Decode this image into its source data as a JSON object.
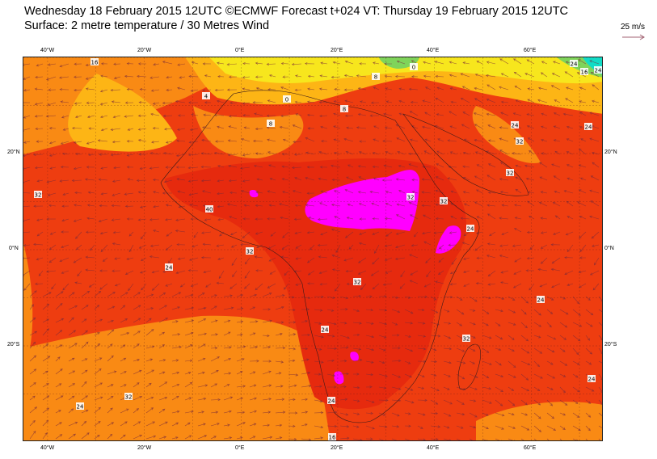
{
  "header": {
    "line1": "Wednesday 18 February 2015 12UTC ©ECMWF Forecast t+024 VT: Thursday 19 February 2015 12UTC",
    "line2": "Surface: 2 metre temperature / 30 Metres Wind",
    "wind_scale": "25 m/s"
  },
  "map": {
    "lon_range": [
      -45,
      75
    ],
    "lat_range": [
      -40,
      40
    ],
    "lon_ticks_top": [
      "40°W",
      "20°W",
      "0°E",
      "20°E",
      "40°E",
      "60°E"
    ],
    "lon_ticks_bottom": [
      "40°W",
      "20°W",
      "0°E",
      "20°E",
      "40°E",
      "60°E"
    ],
    "lat_ticks_left": [
      "20°N",
      "0°N",
      "20°S"
    ],
    "lat_ticks_right": [
      "20°N",
      "0°N",
      "20°S"
    ],
    "contour_labels": [
      "16",
      "4",
      "8",
      "0",
      "24",
      "16",
      "24",
      "0",
      "8",
      "8",
      "24",
      "32",
      "24",
      "32",
      "32",
      "40",
      "32",
      "32",
      "24",
      "32",
      "24",
      "32",
      "24",
      "24",
      "24",
      "16",
      "32",
      "32",
      "24",
      "24"
    ],
    "colors": {
      "ocean": "#ee3d10",
      "hot": "#e62a0e",
      "very_hot": "#ff00ff",
      "warm": "#f98a14",
      "mild": "#fdb515",
      "cool": "#f7e61d",
      "cold": "#7fd45a",
      "freezing": "#11dcc6",
      "arrow": "#7a2a3a"
    }
  }
}
